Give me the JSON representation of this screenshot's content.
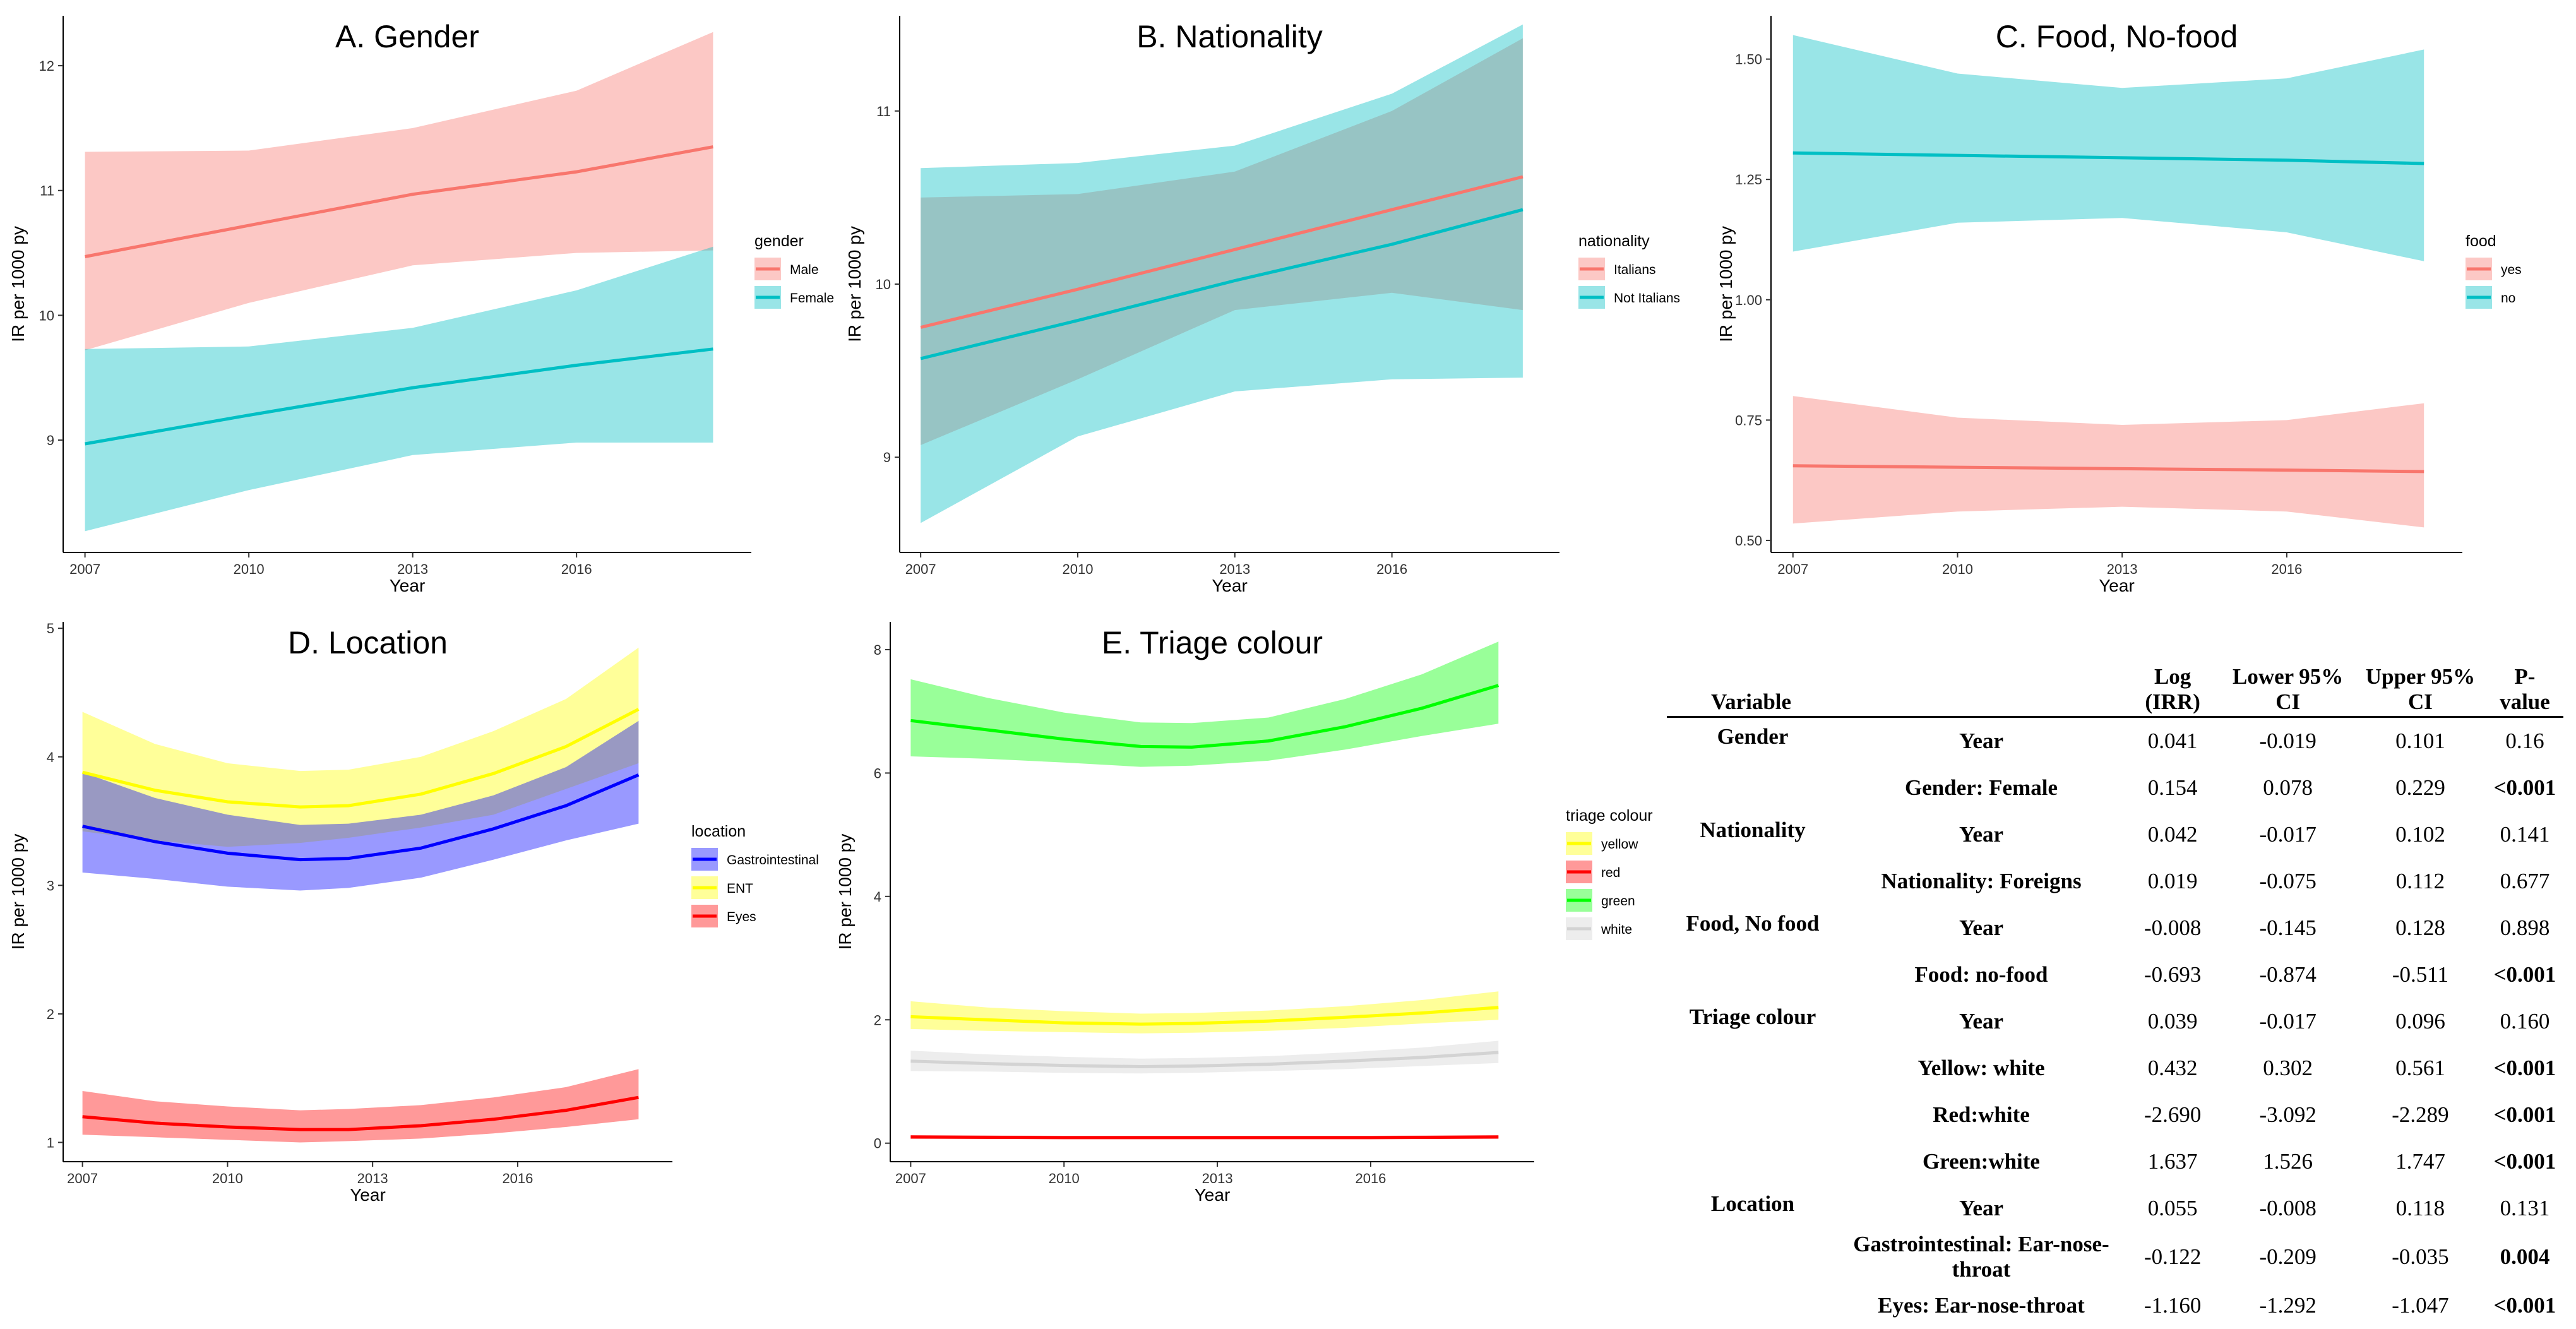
{
  "colors": {
    "red": "#F8766D",
    "teal": "#00BFC4",
    "blue": "#0000FF",
    "yellow": "#FFFF00",
    "lred": "#FF0000",
    "green": "#00FF00",
    "white": "#D3D3D3"
  },
  "chart_data": [
    {
      "id": "A",
      "type": "line",
      "title": "A. Gender",
      "xlabel": "Year",
      "ylabel": "IR per 1000 py",
      "xlim": [
        2006.6,
        2019.2
      ],
      "ylim": [
        8.1,
        12.4
      ],
      "xticks": [
        2007,
        2010,
        2013,
        2016
      ],
      "yticks": [
        9,
        10,
        11,
        12
      ],
      "legend": {
        "title": "gender",
        "entries": [
          "Male",
          "Female"
        ],
        "position": "right"
      },
      "series": [
        {
          "name": "Male",
          "color": "red",
          "x": [
            2007,
            2010,
            2013,
            2016,
            2018.5
          ],
          "y": [
            10.47,
            10.72,
            10.97,
            11.15,
            11.35
          ],
          "lo": [
            9.72,
            10.1,
            10.4,
            10.5,
            10.52
          ],
          "hi": [
            11.31,
            11.32,
            11.5,
            11.8,
            12.27
          ]
        },
        {
          "name": "Female",
          "color": "teal",
          "x": [
            2007,
            2010,
            2013,
            2016,
            2018.5
          ],
          "y": [
            8.97,
            9.2,
            9.42,
            9.6,
            9.73
          ],
          "lo": [
            8.27,
            8.6,
            8.88,
            8.98,
            8.98
          ],
          "hi": [
            9.73,
            9.75,
            9.9,
            10.2,
            10.55
          ]
        }
      ]
    },
    {
      "id": "B",
      "type": "line",
      "title": "B. Nationality",
      "xlabel": "Year",
      "ylabel": "IR per 1000 py",
      "xlim": [
        2006.6,
        2019.2
      ],
      "ylim": [
        8.45,
        11.55
      ],
      "xticks": [
        2007,
        2010,
        2013,
        2016
      ],
      "yticks": [
        9,
        10,
        11
      ],
      "legend": {
        "title": "nationality",
        "entries": [
          "Italians",
          "Not Italians"
        ],
        "position": "right"
      },
      "series": [
        {
          "name": "Italians",
          "color": "red",
          "x": [
            2007,
            2010,
            2013,
            2016,
            2018.5
          ],
          "y": [
            9.75,
            9.97,
            10.2,
            10.43,
            10.62
          ],
          "lo": [
            9.07,
            9.45,
            9.85,
            9.95,
            9.85
          ],
          "hi": [
            10.5,
            10.52,
            10.65,
            11.0,
            11.42
          ]
        },
        {
          "name": "Not Italians",
          "color": "teal",
          "x": [
            2007,
            2010,
            2013,
            2016,
            2018.5
          ],
          "y": [
            9.57,
            9.79,
            10.02,
            10.23,
            10.43
          ],
          "lo": [
            8.62,
            9.12,
            9.38,
            9.45,
            9.46
          ],
          "hi": [
            10.67,
            10.7,
            10.8,
            11.1,
            11.5
          ]
        }
      ]
    },
    {
      "id": "C",
      "type": "line",
      "title": "C. Food, No-food",
      "xlabel": "Year",
      "ylabel": "IR per 1000 py",
      "xlim": [
        2006.6,
        2019.2
      ],
      "ylim": [
        0.475,
        1.59
      ],
      "xticks": [
        2007,
        2010,
        2013,
        2016
      ],
      "yticks": [
        0.5,
        0.75,
        1.0,
        1.25,
        1.5
      ],
      "ytickLabels": [
        "0.50",
        "0.75",
        "1.00",
        "1.25",
        "1.50"
      ],
      "legend": {
        "title": "food",
        "entries": [
          "yes",
          "no"
        ],
        "position": "right"
      },
      "series": [
        {
          "name": "no",
          "color": "teal",
          "x": [
            2007,
            2010,
            2013,
            2016,
            2018.5
          ],
          "y": [
            1.305,
            1.3,
            1.295,
            1.29,
            1.283
          ],
          "lo": [
            1.1,
            1.16,
            1.17,
            1.14,
            1.08
          ],
          "hi": [
            1.55,
            1.47,
            1.44,
            1.46,
            1.52
          ]
        },
        {
          "name": "yes",
          "color": "red",
          "x": [
            2007,
            2010,
            2013,
            2016,
            2018.5
          ],
          "y": [
            0.655,
            0.652,
            0.649,
            0.646,
            0.643
          ],
          "lo": [
            0.535,
            0.56,
            0.57,
            0.56,
            0.527
          ],
          "hi": [
            0.8,
            0.755,
            0.74,
            0.75,
            0.785
          ]
        }
      ]
    },
    {
      "id": "D",
      "type": "line",
      "title": "D. Location",
      "xlabel": "Year",
      "ylabel": "IR per 1000 py",
      "xlim": [
        2006.6,
        2019.2
      ],
      "ylim": [
        0.85,
        5.05
      ],
      "xticks": [
        2007,
        2010,
        2013,
        2016
      ],
      "yticks": [
        1,
        2,
        3,
        4,
        5
      ],
      "legend": {
        "title": "location",
        "entries": [
          "Gastrointestinal",
          "ENT",
          "Eyes"
        ],
        "position": "right"
      },
      "series": [
        {
          "name": "ENT",
          "color": "yellow",
          "x": [
            2007,
            2008.5,
            2010,
            2011.5,
            2012.5,
            2014,
            2015.5,
            2017,
            2018.5
          ],
          "y": [
            3.88,
            3.74,
            3.65,
            3.61,
            3.62,
            3.71,
            3.87,
            4.08,
            4.37
          ],
          "lo": [
            3.42,
            3.35,
            3.3,
            3.33,
            3.37,
            3.45,
            3.55,
            3.75,
            3.95
          ],
          "hi": [
            4.35,
            4.1,
            3.95,
            3.89,
            3.9,
            4.0,
            4.2,
            4.45,
            4.85
          ]
        },
        {
          "name": "Gastrointestinal",
          "color": "blue",
          "x": [
            2007,
            2008.5,
            2010,
            2011.5,
            2012.5,
            2014,
            2015.5,
            2017,
            2018.5
          ],
          "y": [
            3.46,
            3.34,
            3.25,
            3.2,
            3.21,
            3.29,
            3.44,
            3.62,
            3.86
          ],
          "lo": [
            3.1,
            3.05,
            2.99,
            2.96,
            2.98,
            3.06,
            3.2,
            3.35,
            3.48
          ],
          "hi": [
            3.88,
            3.68,
            3.55,
            3.47,
            3.48,
            3.55,
            3.7,
            3.92,
            4.28
          ]
        },
        {
          "name": "Eyes",
          "color": "lred",
          "x": [
            2007,
            2008.5,
            2010,
            2011.5,
            2012.5,
            2014,
            2015.5,
            2017,
            2018.5
          ],
          "y": [
            1.2,
            1.15,
            1.12,
            1.1,
            1.1,
            1.13,
            1.18,
            1.25,
            1.35
          ],
          "lo": [
            1.06,
            1.04,
            1.02,
            1.0,
            1.01,
            1.03,
            1.07,
            1.12,
            1.18
          ],
          "hi": [
            1.4,
            1.32,
            1.28,
            1.25,
            1.26,
            1.29,
            1.35,
            1.43,
            1.57
          ]
        }
      ]
    },
    {
      "id": "E",
      "type": "line",
      "title": "E. Triage colour",
      "xlabel": "Year",
      "ylabel": "IR per 1000 py",
      "xlim": [
        2006.6,
        2019.2
      ],
      "ylim": [
        -0.3,
        8.45
      ],
      "xticks": [
        2007,
        2010,
        2013,
        2016
      ],
      "yticks": [
        0,
        2,
        4,
        6,
        8
      ],
      "legend": {
        "title": "triage colour",
        "entries": [
          "yellow",
          "red",
          "green",
          "white"
        ],
        "position": "right"
      },
      "series": [
        {
          "name": "green",
          "color": "green",
          "x": [
            2007,
            2008.5,
            2010,
            2011.5,
            2012.5,
            2014,
            2015.5,
            2017,
            2018.5
          ],
          "y": [
            6.85,
            6.7,
            6.55,
            6.43,
            6.42,
            6.52,
            6.75,
            7.05,
            7.42
          ],
          "lo": [
            6.27,
            6.23,
            6.17,
            6.1,
            6.12,
            6.2,
            6.38,
            6.6,
            6.8
          ],
          "hi": [
            7.52,
            7.22,
            6.98,
            6.82,
            6.81,
            6.9,
            7.2,
            7.6,
            8.13
          ]
        },
        {
          "name": "yellow",
          "color": "yellow",
          "x": [
            2007,
            2008.5,
            2010,
            2011.5,
            2012.5,
            2014,
            2015.5,
            2017,
            2018.5
          ],
          "y": [
            2.05,
            2.0,
            1.95,
            1.93,
            1.94,
            1.98,
            2.04,
            2.11,
            2.2
          ],
          "lo": [
            1.85,
            1.82,
            1.8,
            1.78,
            1.79,
            1.82,
            1.87,
            1.94,
            2.0
          ],
          "hi": [
            2.3,
            2.2,
            2.14,
            2.1,
            2.11,
            2.15,
            2.22,
            2.32,
            2.46
          ]
        },
        {
          "name": "white",
          "color": "white",
          "x": [
            2007,
            2008.5,
            2010,
            2011.5,
            2012.5,
            2014,
            2015.5,
            2017,
            2018.5
          ],
          "y": [
            1.33,
            1.29,
            1.26,
            1.24,
            1.25,
            1.28,
            1.33,
            1.39,
            1.47
          ],
          "lo": [
            1.17,
            1.16,
            1.14,
            1.13,
            1.14,
            1.17,
            1.2,
            1.25,
            1.3
          ],
          "hi": [
            1.5,
            1.44,
            1.4,
            1.37,
            1.38,
            1.41,
            1.47,
            1.55,
            1.66
          ]
        },
        {
          "name": "red",
          "color": "lred",
          "x": [
            2007,
            2010,
            2013,
            2016,
            2018.5
          ],
          "y": [
            0.1,
            0.09,
            0.09,
            0.09,
            0.1
          ],
          "lo": [
            0.07,
            0.07,
            0.07,
            0.07,
            0.07
          ],
          "hi": [
            0.13,
            0.12,
            0.12,
            0.12,
            0.13
          ]
        }
      ]
    }
  ],
  "table": {
    "headers": [
      "Variable",
      "",
      "Log (IRR)",
      "Lower 95% CI",
      "Upper 95% CI",
      "P-value"
    ],
    "rows": [
      {
        "variable": "Gender",
        "term": "Year",
        "log": "0.041",
        "lower": "-0.019",
        "upper": "0.101",
        "p": "0.16"
      },
      {
        "variable": "",
        "term": "Gender: Female",
        "log": "0.154",
        "lower": "0.078",
        "upper": "0.229",
        "p": "<0.001"
      },
      {
        "variable": "Nationality",
        "term": "Year",
        "log": "0.042",
        "lower": "-0.017",
        "upper": "0.102",
        "p": "0.141"
      },
      {
        "variable": "",
        "term": "Nationality: Foreigns",
        "log": "0.019",
        "lower": "-0.075",
        "upper": "0.112",
        "p": "0.677"
      },
      {
        "variable": "Food, No food",
        "term": "Year",
        "log": "-0.008",
        "lower": "-0.145",
        "upper": "0.128",
        "p": "0.898"
      },
      {
        "variable": "",
        "term": "Food: no-food",
        "log": "-0.693",
        "lower": "-0.874",
        "upper": "-0.511",
        "p": "<0.001"
      },
      {
        "variable": "Triage colour",
        "term": "Year",
        "log": "0.039",
        "lower": "-0.017",
        "upper": "0.096",
        "p": "0.160"
      },
      {
        "variable": "",
        "term": "Yellow: white",
        "log": "0.432",
        "lower": "0.302",
        "upper": "0.561",
        "p": "<0.001"
      },
      {
        "variable": "",
        "term": "Red:white",
        "log": "-2.690",
        "lower": "-3.092",
        "upper": "-2.289",
        "p": "<0.001"
      },
      {
        "variable": "",
        "term": "Green:white",
        "log": "1.637",
        "lower": "1.526",
        "upper": "1.747",
        "p": "<0.001"
      },
      {
        "variable": "Location",
        "term": "Year",
        "log": "0.055",
        "lower": "-0.008",
        "upper": "0.118",
        "p": "0.131"
      },
      {
        "variable": "",
        "term": "Gastrointestinal: Ear-nose-throat",
        "log": "-0.122",
        "lower": "-0.209",
        "upper": "-0.035",
        "p": "0.004"
      },
      {
        "variable": "",
        "term": "Eyes: Ear-nose-throat",
        "log": "-1.160",
        "lower": "-1.292",
        "upper": "-1.047",
        "p": "<0.001"
      }
    ]
  }
}
